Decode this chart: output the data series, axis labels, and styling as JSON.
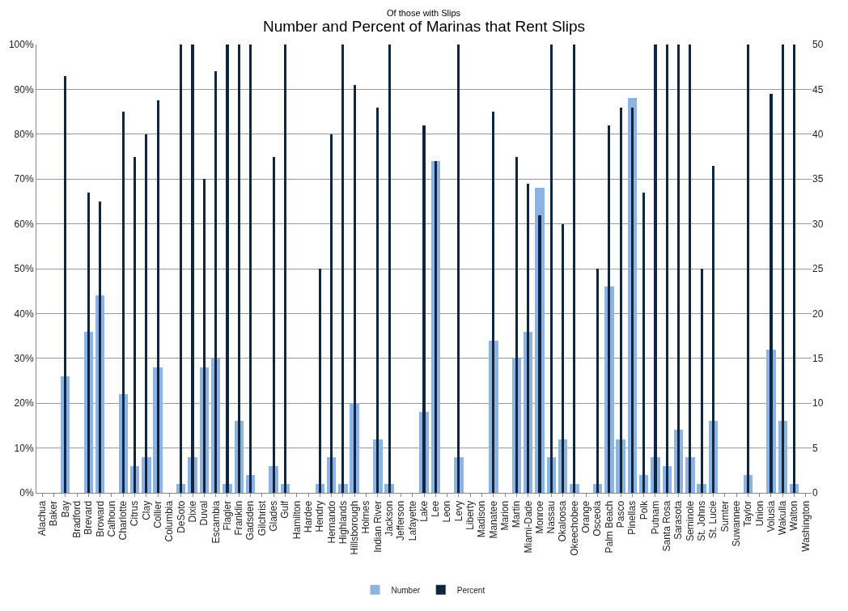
{
  "chart_data": {
    "type": "bar",
    "title": "Number and Percent of Marinas that Rent Slips",
    "subtitle": "Of those with Slips",
    "categories": [
      "Alachua",
      "Baker",
      "Bay",
      "Bradford",
      "Brevard",
      "Broward",
      "Calhoun",
      "Charlotte",
      "Citrus",
      "Clay",
      "Collier",
      "Columbia",
      "DeSoto",
      "Dixie",
      "Duval",
      "Escambia",
      "Flagler",
      "Franklin",
      "Gadsden",
      "Gilchrist",
      "Glades",
      "Gulf",
      "Hamilton",
      "Hardee",
      "Hendry",
      "Hernando",
      "Highlands",
      "Hillsborough",
      "Holmes",
      "Indian River",
      "Jackson",
      "Jefferson",
      "Lafayette",
      "Lake",
      "Lee",
      "Leon",
      "Levy",
      "Liberty",
      "Madison",
      "Manatee",
      "Marion",
      "Martin",
      "Miami-Dade",
      "Monroe",
      "Nassau",
      "Okaloosa",
      "Okeechobee",
      "Orange",
      "Osceola",
      "Palm Beach",
      "Pasco",
      "Pinellas",
      "Polk",
      "Putnam",
      "Santa Rosa",
      "Sarasota",
      "Seminole",
      "St. Johns",
      "St. Lucie",
      "Sumter",
      "Suwannee",
      "Taylor",
      "Union",
      "Volusia",
      "Wakulla",
      "Walton",
      "Washington"
    ],
    "series": [
      {
        "name": "Number",
        "color": "#8db3e2",
        "axis": "y2",
        "values": [
          null,
          null,
          13,
          null,
          18,
          22,
          null,
          11,
          3,
          4,
          14,
          null,
          1,
          4,
          14,
          15,
          1,
          8,
          2,
          null,
          3,
          1,
          null,
          null,
          1,
          4,
          1,
          10,
          null,
          6,
          1,
          null,
          null,
          9,
          37,
          null,
          4,
          null,
          null,
          17,
          null,
          15,
          18,
          34,
          4,
          6,
          1,
          null,
          1,
          23,
          6,
          44,
          2,
          4,
          3,
          7,
          4,
          1,
          8,
          null,
          null,
          2,
          null,
          16,
          8,
          1,
          null
        ]
      },
      {
        "name": "Percent",
        "color": "#10253f",
        "values": [
          null,
          null,
          93,
          null,
          67,
          65,
          null,
          85,
          75,
          80,
          87.5,
          null,
          100,
          100,
          70,
          94,
          100,
          100,
          100,
          null,
          75,
          100,
          null,
          null,
          50,
          80,
          100,
          91,
          null,
          86,
          100,
          null,
          null,
          82,
          74,
          null,
          100,
          null,
          null,
          85,
          null,
          75,
          69,
          62,
          100,
          60,
          100,
          null,
          50,
          82,
          86,
          86,
          67,
          100,
          100,
          100,
          100,
          50,
          73,
          null,
          null,
          100,
          null,
          89,
          100,
          100,
          null
        ]
      }
    ],
    "ylim": [
      0,
      100
    ],
    "yticks": [
      {
        "value": 0,
        "label": "0%"
      },
      {
        "value": 10,
        "label": "10%"
      },
      {
        "value": 20,
        "label": "20%"
      },
      {
        "value": 30,
        "label": "30%"
      },
      {
        "value": 40,
        "label": "40%"
      },
      {
        "value": 50,
        "label": "50%"
      },
      {
        "value": 60,
        "label": "60%"
      },
      {
        "value": 70,
        "label": "70%"
      },
      {
        "value": 80,
        "label": "80%"
      },
      {
        "value": 90,
        "label": "90%"
      },
      {
        "value": 100,
        "label": "100%"
      }
    ],
    "y2lim": [
      0,
      50
    ],
    "y2ticks": [
      0,
      5,
      10,
      15,
      20,
      25,
      30,
      35,
      40,
      45,
      50
    ],
    "grid": "y",
    "legend": "bottom"
  }
}
